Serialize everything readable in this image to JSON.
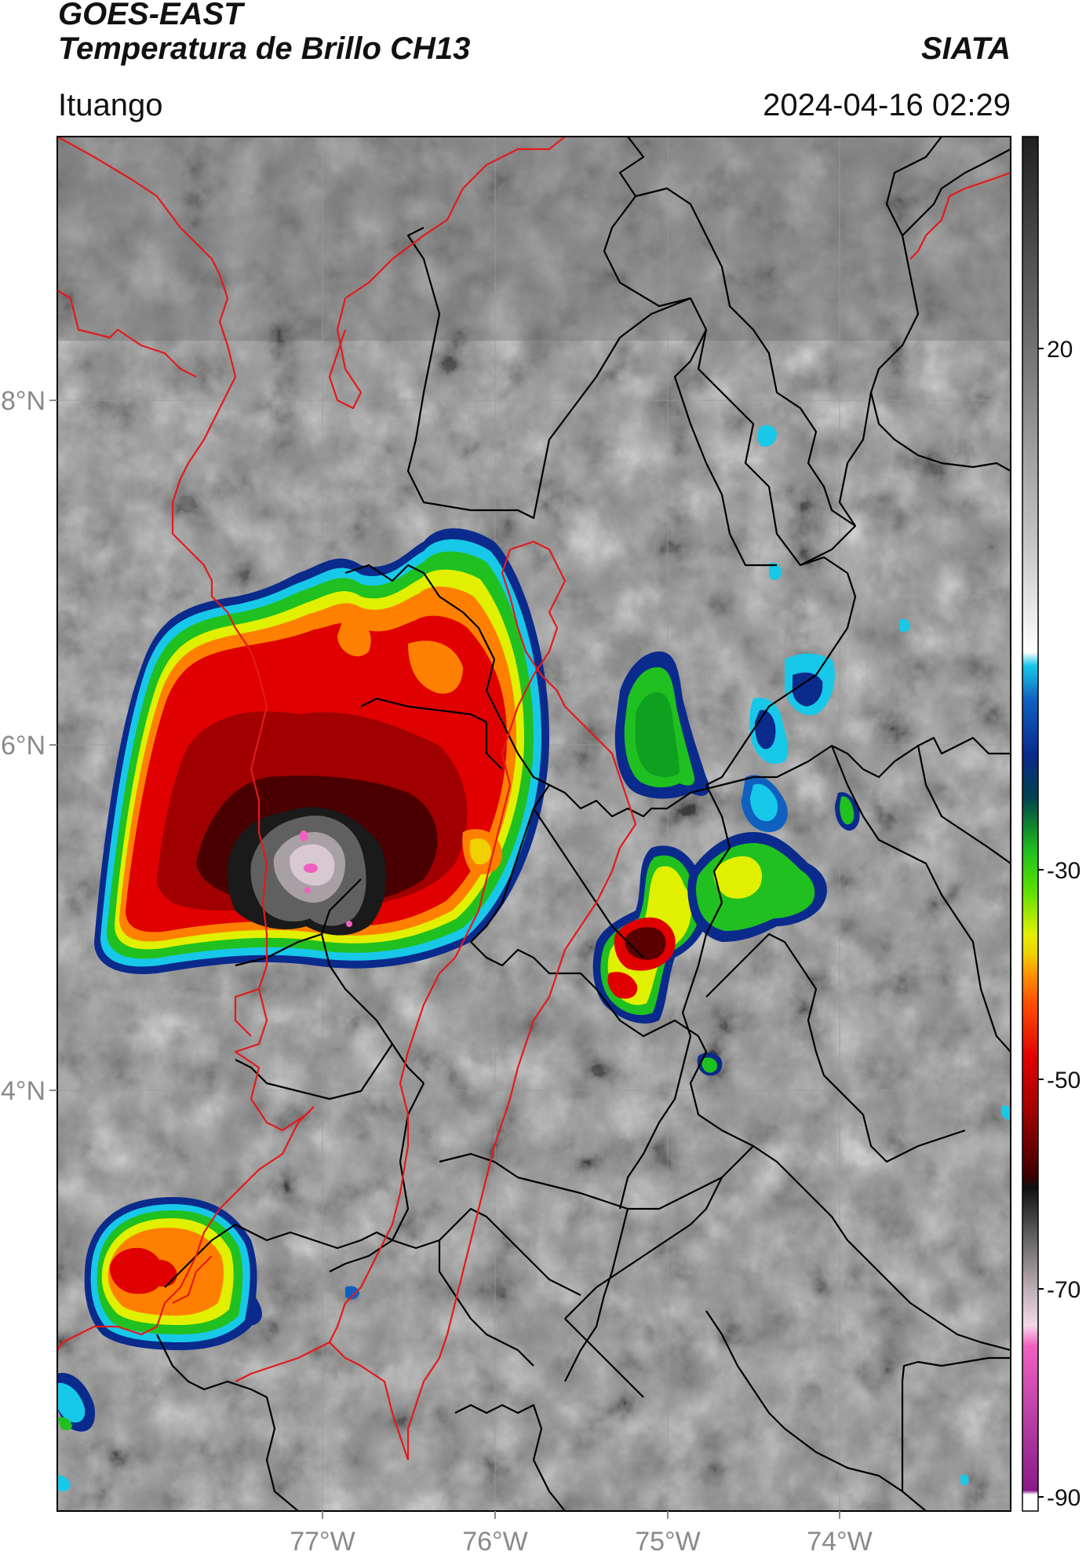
{
  "header": {
    "satellite": "GOES-EAST",
    "product": "Temperatura de Brillo CH13",
    "organization": "SIATA",
    "location": "Ituango",
    "datetime": "2024-04-16 02:29"
  },
  "map": {
    "lon_range": [
      -78.55,
      -73.0
    ],
    "lat_range": [
      2.45,
      9.35
    ],
    "lat_labels": [
      "8°N",
      "6°N",
      "4°N"
    ],
    "lon_labels": [
      "77°W",
      "76°W",
      "75°W",
      "74°W"
    ],
    "background": "grayscale cloud-top brightness temperature",
    "storm_cells": [
      {
        "name": "large convective system",
        "min_temp_c": -85
      },
      {
        "name": "southwest cell",
        "min_temp_c": -62
      },
      {
        "name": "central cells",
        "min_temp_c": -68
      }
    ],
    "border_colors": {
      "country_coast": "#e31a1c",
      "departments": "#000000"
    }
  },
  "colorbar": {
    "ticks": [
      "20",
      "-30",
      "-50",
      "-70",
      "-90"
    ],
    "colors": {
      "warm": "#5a5a5a",
      "white": "#f4f4f4",
      "cyan": "#18c8e8",
      "blue": "#0a2a8c",
      "green": "#20c020",
      "yellow": "#f0f000",
      "orange": "#ff8000",
      "red": "#e00000",
      "darkred": "#5a0000",
      "black": "#000000",
      "pink": "#f060c0",
      "purple": "#8a1a8a"
    }
  }
}
